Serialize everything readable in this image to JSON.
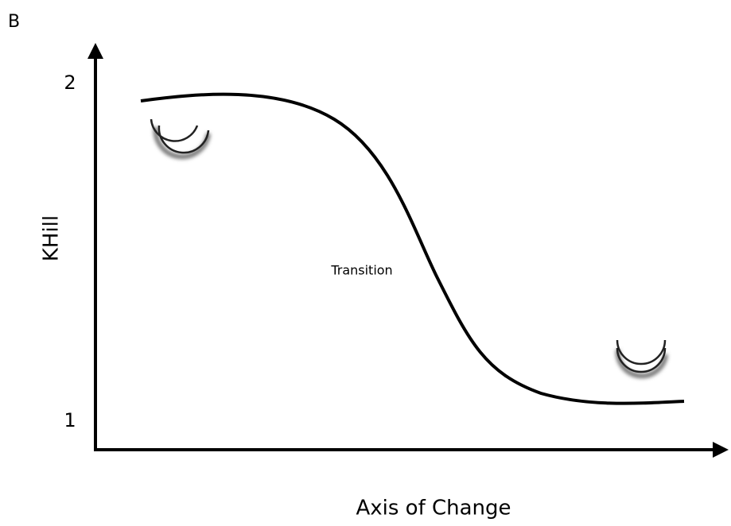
{
  "panel_label": "B",
  "y_axis": {
    "label": "KHill",
    "top_label": "2",
    "bottom_label": "1"
  },
  "x_axis": {
    "label": "Axis of Change"
  },
  "annotation": "Transition"
}
